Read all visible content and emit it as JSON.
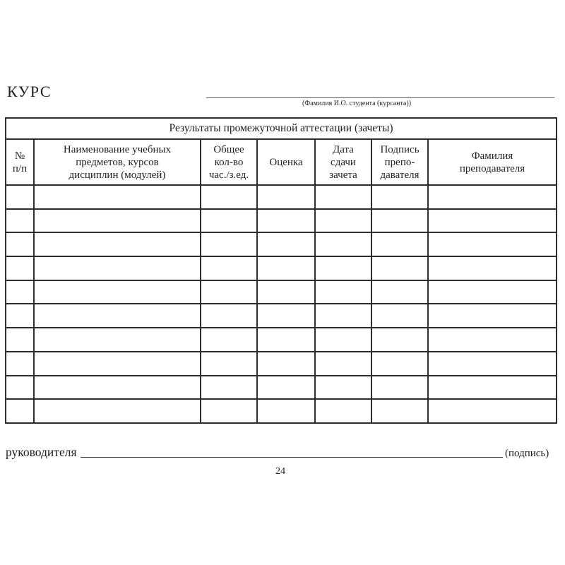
{
  "colors": {
    "text": "#1f1f1f",
    "table_border": "#2d2d2d",
    "blank_line": "#5a5a5a",
    "background": "#ffffff"
  },
  "header": {
    "course_label": "КУРС",
    "student_name_caption": "(Фамилия И.О. студента (курсанта))"
  },
  "table": {
    "title": "Результаты промежуточной аттестации (зачеты)",
    "row_count": 10,
    "columns": [
      "№\nп/п",
      "Наименование учебных\nпредметов, курсов\nдисциплин (модулей)",
      "Общее\nкол-во\nчас./з.ед.",
      "Оценка",
      "Дата\nсдачи\nзачета",
      "Подпись\nпрепо-\nдавателя",
      "Фамилия\nпреподавателя"
    ]
  },
  "footer": {
    "left_label": "руководителя",
    "signature_caption": "(подпись)",
    "page_number": "24"
  }
}
